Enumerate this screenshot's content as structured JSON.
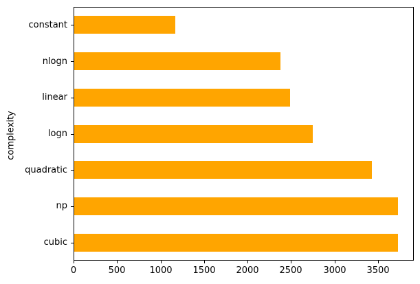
{
  "chart_data": {
    "type": "bar",
    "orientation": "horizontal",
    "title": "",
    "xlabel": "",
    "ylabel": "complexity",
    "categories": [
      "constant",
      "nlogn",
      "linear",
      "logn",
      "quadratic",
      "np",
      "cubic"
    ],
    "categories_order": "top-to-bottom",
    "values": [
      1170,
      2380,
      2490,
      2750,
      3430,
      3730,
      3730
    ],
    "bar_color": "#FFA500",
    "xticks": [
      0,
      500,
      1000,
      1500,
      2000,
      2500,
      3000,
      3500
    ],
    "xlim": [
      0,
      3912
    ],
    "grid": false,
    "legend": null,
    "background_color": "#FFFFFF",
    "spine_color": "#000000"
  }
}
